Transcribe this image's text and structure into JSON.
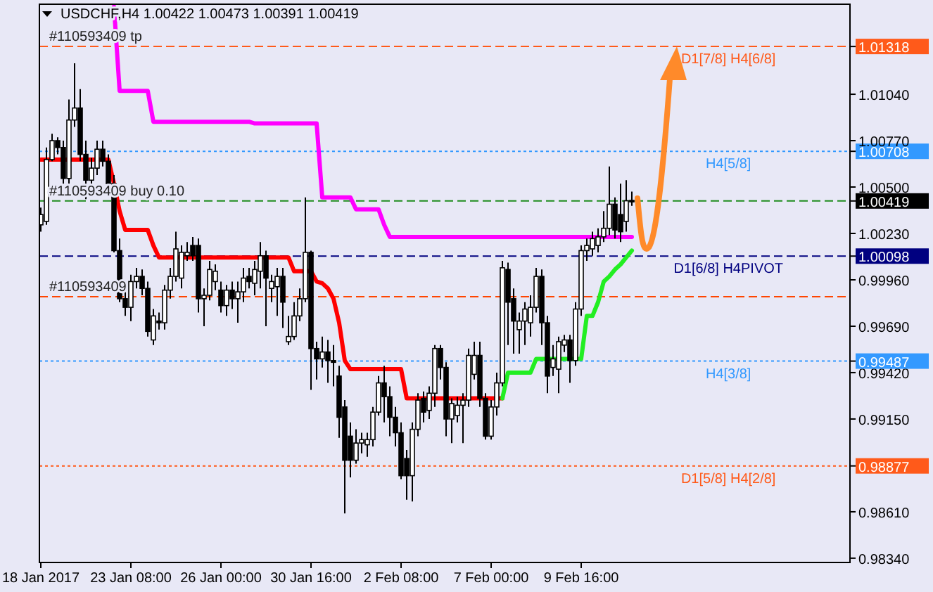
{
  "chart_data": {
    "type": "candlestick",
    "title": "USDCHF,H4  1.00422 1.00473 1.00391 1.00419",
    "categories": [
      "18 Jan 2017",
      null,
      null,
      null,
      null,
      null,
      null,
      null,
      null,
      null,
      null,
      null,
      null,
      null,
      null,
      null,
      "23 Jan 08:00",
      null,
      null,
      null,
      null,
      null,
      null,
      null,
      null,
      null,
      null,
      null,
      null,
      null,
      null,
      null,
      "26 Jan 00:00",
      null,
      null,
      null,
      null,
      null,
      null,
      null,
      null,
      null,
      null,
      null,
      null,
      null,
      null,
      null,
      "30 Jan 16:00",
      null,
      null,
      null,
      null,
      null,
      null,
      null,
      null,
      null,
      null,
      null,
      null,
      null,
      null,
      null,
      "2 Feb 08:00",
      null,
      null,
      null,
      null,
      null,
      null,
      null,
      null,
      null,
      null,
      null,
      null,
      null,
      null,
      null,
      "7 Feb 00:00",
      null,
      null,
      null,
      null,
      null,
      null,
      null,
      null,
      null,
      null,
      null,
      null,
      null,
      null,
      null,
      "9 Feb 16:00",
      null,
      null,
      null,
      null,
      null,
      null,
      null,
      null,
      null
    ],
    "ohlc": [
      [
        1.0028,
        1.0038,
        1.0024,
        1.0034
      ],
      [
        1.003,
        1.0073,
        1.0028,
        1.0066
      ],
      [
        1.0066,
        1.0081,
        1.0065,
        1.0077
      ],
      [
        1.0077,
        1.0079,
        1.0069,
        1.0073
      ],
      [
        1.0073,
        1.0077,
        1.0052,
        1.0055
      ],
      [
        1.0055,
        1.0101,
        1.0052,
        1.0089
      ],
      [
        1.0089,
        1.0122,
        1.0085,
        1.0096
      ],
      [
        1.0096,
        1.0107,
        1.0065,
        1.0069
      ],
      [
        1.0069,
        1.0077,
        1.0043,
        1.0054
      ],
      [
        1.0054,
        1.0067,
        1.0044,
        1.0061
      ],
      [
        1.0061,
        1.0077,
        1.0057,
        1.0072
      ],
      [
        1.0072,
        1.0077,
        1.0062,
        1.0065
      ],
      [
        1.0065,
        1.0069,
        1.0048,
        1.0052
      ],
      [
        1.0052,
        1.0057,
        1.0012,
        1.0013
      ],
      [
        1.0013,
        1.002,
        0.9983,
        0.9985
      ],
      [
        0.9985,
        0.9995,
        0.9975,
        0.998
      ],
      [
        0.998,
        0.9999,
        0.9972,
        0.9995
      ],
      [
        0.9995,
        1.0003,
        0.9991,
        0.9998
      ],
      [
        0.9998,
        1.0002,
        0.9987,
        0.9991
      ],
      [
        0.9991,
        0.9995,
        0.9963,
        0.9966
      ],
      [
        0.9961,
        0.9979,
        0.9958,
        0.9975
      ],
      [
        0.9972,
        0.9977,
        0.9967,
        0.9971
      ],
      [
        0.9971,
        0.9993,
        0.9967,
        0.999
      ],
      [
        0.999,
        1.0003,
        0.9985,
        0.9998
      ],
      [
        0.9998,
        1.0024,
        0.9995,
        1.0014
      ],
      [
        0.9997,
        1.0016,
        0.9991,
        1.0012
      ],
      [
        1.001,
        1.0018,
        1.0007,
        1.0012
      ],
      [
        1.0016,
        1.0021,
        1.0007,
        1.001
      ],
      [
        1.0016,
        1.002,
        0.9977,
        0.9985
      ],
      [
        0.9985,
        0.9991,
        0.9969,
        0.9987
      ],
      [
        0.9987,
        1.0007,
        0.9984,
        1.0002
      ],
      [
        0.9995,
        1.0005,
        0.999,
        1.0001
      ],
      [
        0.999,
        0.9995,
        0.9977,
        0.9981
      ],
      [
        0.9981,
        0.9993,
        0.9975,
        0.999
      ],
      [
        0.999,
        0.9995,
        0.9979,
        0.9985
      ],
      [
        0.9985,
        0.9995,
        0.9971,
        0.9989
      ],
      [
        0.9989,
        1.0003,
        0.9983,
        0.9997
      ],
      [
        0.9998,
        1.0003,
        0.9991,
        0.9995
      ],
      [
        0.9994,
        1.0007,
        0.9987,
        1.0002
      ],
      [
        1.0001,
        1.0018,
        0.9991,
        1.001
      ],
      [
        1.001,
        1.0013,
        0.9969,
        0.9997
      ],
      [
        0.9991,
        0.9999,
        0.9983,
        0.9995
      ],
      [
        0.9992,
        1.0003,
        0.9975,
        0.9998
      ],
      [
        0.9998,
        1.0003,
        0.9968,
        0.9983
      ],
      [
        0.996,
        0.9975,
        0.9958,
        0.9963
      ],
      [
        0.9963,
        0.9983,
        0.9961,
        0.9975
      ],
      [
        0.9975,
        0.9991,
        0.9972,
        0.9985
      ],
      [
        0.9985,
        1.0044,
        0.9983,
        1.0012
      ],
      [
        1.0012,
        1.0013,
        0.9932,
        0.9956
      ],
      [
        0.9956,
        0.996,
        0.9938,
        0.995
      ],
      [
        0.995,
        0.9963,
        0.9945,
        0.9954
      ],
      [
        0.9954,
        0.9961,
        0.9936,
        0.9949
      ],
      [
        0.9949,
        0.9958,
        0.9934,
        0.9948
      ],
      [
        0.994,
        0.9946,
        0.9904,
        0.9916
      ],
      [
        0.9922,
        0.9926,
        0.986,
        0.9891
      ],
      [
        0.9905,
        0.9913,
        0.9881,
        0.9891
      ],
      [
        0.9891,
        0.9909,
        0.9889,
        0.9901
      ],
      [
        0.9901,
        0.9907,
        0.9895,
        0.9903
      ],
      [
        0.99,
        0.9907,
        0.9893,
        0.9903
      ],
      [
        0.9903,
        0.9922,
        0.9899,
        0.9919
      ],
      [
        0.9919,
        0.994,
        0.9917,
        0.9936
      ],
      [
        0.9936,
        0.9946,
        0.9913,
        0.9928
      ],
      [
        0.9928,
        0.9934,
        0.9905,
        0.9916
      ],
      [
        0.9916,
        0.9922,
        0.9899,
        0.9907
      ],
      [
        0.9907,
        0.9913,
        0.988,
        0.9882
      ],
      [
        0.9892,
        0.9897,
        0.9868,
        0.9882
      ],
      [
        0.9882,
        0.9913,
        0.9867,
        0.9909
      ],
      [
        0.9909,
        0.993,
        0.9905,
        0.9926
      ],
      [
        0.9927,
        0.9931,
        0.9913,
        0.9919
      ],
      [
        0.992,
        0.9934,
        0.9915,
        0.993
      ],
      [
        0.993,
        0.9958,
        0.9922,
        0.9956
      ],
      [
        0.9956,
        0.9958,
        0.9938,
        0.9945
      ],
      [
        0.9945,
        0.9948,
        0.9905,
        0.9915
      ],
      [
        0.9915,
        0.9927,
        0.9901,
        0.9924
      ],
      [
        0.9917,
        0.9928,
        0.9913,
        0.9923
      ],
      [
        0.9923,
        0.993,
        0.9901,
        0.9926
      ],
      [
        0.9926,
        0.9956,
        0.9922,
        0.9952
      ],
      [
        0.9941,
        0.996,
        0.9938,
        0.9952
      ],
      [
        0.9952,
        0.996,
        0.9922,
        0.9927
      ],
      [
        0.9927,
        0.993,
        0.9903,
        0.9905
      ],
      [
        0.9905,
        0.9926,
        0.9903,
        0.9922
      ],
      [
        0.9922,
        0.9942,
        0.9917,
        0.9936
      ],
      [
        0.9936,
        1.0007,
        0.9934,
        1.0003
      ],
      [
        1.0002,
        1.0006,
        0.9958,
        0.9983
      ],
      [
        0.9985,
        0.9991,
        0.9953,
        0.9972
      ],
      [
        0.9967,
        0.9977,
        0.9953,
        0.9972
      ],
      [
        0.9972,
        0.9983,
        0.9958,
        0.9979
      ],
      [
        0.9971,
        0.9987,
        0.9963,
        0.998
      ],
      [
        0.998,
        1.0003,
        0.9977,
        0.9998
      ],
      [
        0.9998,
        1.0002,
        0.9958,
        0.9971
      ],
      [
        0.9971,
        0.9975,
        0.993,
        0.994
      ],
      [
        0.9945,
        0.9958,
        0.994,
        0.995
      ],
      [
        0.9944,
        0.9963,
        0.993,
        0.996
      ],
      [
        0.9958,
        0.9964,
        0.9954,
        0.9961
      ],
      [
        0.9961,
        0.9964,
        0.9936,
        0.9949
      ],
      [
        0.9949,
        0.9983,
        0.9946,
        0.9979
      ],
      [
        0.9979,
        1.0016,
        0.9975,
        1.0013
      ],
      [
        1.0013,
        1.002,
        1.0007,
        1.0016
      ],
      [
        1.0014,
        1.0024,
        1.001,
        1.002
      ],
      [
        1.0016,
        1.0026,
        1.0012,
        1.0021
      ],
      [
        1.0021,
        1.0036,
        1.0018,
        1.0026
      ],
      [
        1.0026,
        1.0062,
        1.0022,
        1.004
      ],
      [
        1.004,
        1.0044,
        1.002,
        1.0025
      ],
      [
        1.0034,
        1.0052,
        1.0018,
        1.0024
      ],
      [
        1.003,
        1.0054,
        1.0024,
        1.0042
      ],
      [
        1.00422,
        1.00473,
        1.00391,
        1.00419
      ]
    ],
    "series": [
      {
        "type": "line",
        "color": "#ff00ff",
        "values": [
          null,
          null,
          null,
          null,
          null,
          null,
          null,
          null,
          null,
          null,
          null,
          null,
          null,
          1.0155,
          1.0106,
          1.0106,
          1.0106,
          1.0106,
          1.0106,
          1.0106,
          1.0088,
          1.0088,
          1.0088,
          1.0088,
          1.0088,
          1.0088,
          1.0088,
          1.0088,
          1.0088,
          1.0088,
          1.0088,
          1.0088,
          1.0088,
          1.0088,
          1.0088,
          1.0088,
          1.0088,
          1.0088,
          1.0087,
          1.0087,
          1.0087,
          1.0087,
          1.0087,
          1.0087,
          1.0087,
          1.0087,
          1.0087,
          1.0087,
          1.0087,
          1.0087,
          1.0044,
          1.0044,
          1.0044,
          1.0044,
          1.0044,
          1.0044,
          1.0037,
          1.0037,
          1.0037,
          1.0037,
          1.0037,
          1.0028,
          1.0021,
          1.0021,
          1.0021,
          1.0021,
          1.0021,
          1.0021,
          1.0021,
          1.0021,
          1.0021,
          1.0021,
          1.0021,
          1.0021,
          1.0021,
          1.0021,
          1.0021,
          1.0021,
          1.0021,
          1.0021,
          1.0021,
          1.0021,
          1.0021,
          1.0021,
          1.0021,
          1.0021,
          1.0021,
          1.0021,
          1.0021,
          1.0021,
          1.0021,
          1.0021,
          1.0021,
          1.0021,
          1.0021,
          1.0021,
          1.0021,
          1.0021,
          1.0021,
          1.0021,
          1.0021,
          1.0021,
          1.0021,
          1.0021,
          1.0021,
          1.0021
        ]
      },
      {
        "type": "line",
        "color": "#ff0000",
        "values": [
          1.0066,
          1.0066,
          1.0066,
          1.0066,
          1.0066,
          1.0066,
          1.0066,
          1.0066,
          1.0066,
          1.0066,
          1.0066,
          1.0066,
          1.0066,
          1.0052,
          1.0036,
          1.0025,
          1.0025,
          1.0025,
          1.0025,
          1.0025,
          1.0016,
          1.0009,
          1.0009,
          1.0009,
          1.0009,
          1.0009,
          1.0009,
          1.0009,
          1.0009,
          1.0009,
          1.0009,
          1.0009,
          1.0009,
          1.0009,
          1.0009,
          1.0009,
          1.0009,
          1.0009,
          1.0009,
          1.0009,
          1.0009,
          1.0009,
          1.0009,
          1.0009,
          1.0009,
          1.0001,
          1.0001,
          1.0001,
          1.0001,
          0.9995,
          0.9994,
          0.9991,
          0.9985,
          0.9971,
          0.9949,
          0.9944,
          0.9944,
          0.9944,
          0.9944,
          0.9944,
          0.9944,
          0.9944,
          0.9944,
          0.9944,
          0.9944,
          0.9927,
          0.9927,
          0.9927,
          0.9927,
          0.9927,
          0.9927,
          0.9927,
          0.9927,
          0.9927,
          0.9927,
          0.9927,
          0.9927,
          0.9927,
          0.9927,
          0.9927,
          0.9927,
          0.9927,
          0.9927,
          null,
          null,
          null,
          null,
          null,
          null,
          null,
          null,
          null,
          null,
          null,
          null,
          null,
          null,
          null,
          null,
          null,
          null,
          null,
          null,
          null,
          null,
          null
        ]
      },
      {
        "type": "line",
        "color": "#22ee22",
        "values": [
          null,
          null,
          null,
          null,
          null,
          null,
          null,
          null,
          null,
          null,
          null,
          null,
          null,
          null,
          null,
          null,
          null,
          null,
          null,
          null,
          null,
          null,
          null,
          null,
          null,
          null,
          null,
          null,
          null,
          null,
          null,
          null,
          null,
          null,
          null,
          null,
          null,
          null,
          null,
          null,
          null,
          null,
          null,
          null,
          null,
          null,
          null,
          null,
          null,
          null,
          null,
          null,
          null,
          null,
          null,
          null,
          null,
          null,
          null,
          null,
          null,
          null,
          null,
          null,
          null,
          null,
          null,
          null,
          null,
          null,
          null,
          null,
          null,
          null,
          null,
          null,
          null,
          null,
          null,
          null,
          null,
          null,
          0.9927,
          0.9942,
          0.9942,
          0.9942,
          0.9942,
          0.9942,
          0.995,
          0.995,
          0.995,
          0.995,
          0.995,
          0.995,
          0.995,
          0.995,
          0.995,
          0.9975,
          0.9975,
          0.9983,
          0.9995,
          0.9998,
          1.0002,
          1.0005,
          1.0009,
          1.0013
        ]
      }
    ],
    "ylim": [
      0.98315,
      1.01564
    ],
    "yticks": [
      {
        "value": 0.9834,
        "label": "0.98340"
      },
      {
        "value": 0.9861,
        "label": "0.98610"
      },
      {
        "value": 0.98877,
        "label": "0.98877"
      },
      {
        "value": 0.9915,
        "label": "0.99150"
      },
      {
        "value": 0.9942,
        "label": "0.99420"
      },
      {
        "value": 0.99487,
        "label": "0.99487"
      },
      {
        "value": 0.9969,
        "label": "0.99690"
      },
      {
        "value": 0.9996,
        "label": "0.99960"
      },
      {
        "value": 1.00098,
        "label": "1.00098"
      },
      {
        "value": 1.0023,
        "label": "1.00230"
      },
      {
        "value": 1.00419,
        "label": "1.00419"
      },
      {
        "value": 1.005,
        "label": "1.00500"
      },
      {
        "value": 1.00708,
        "label": "1.00708"
      },
      {
        "value": 1.0077,
        "label": "1.00770"
      },
      {
        "value": 1.0104,
        "label": "1.01040"
      },
      {
        "value": 1.01318,
        "label": "1.01318"
      }
    ],
    "ref_lines": [
      {
        "axis": "y",
        "value": 1.01318,
        "label": "D1[7/8] H4[6/8]",
        "color": "#ff5a1a",
        "line_style": "dashed"
      },
      {
        "axis": "y",
        "value": 1.00708,
        "label": "H4[5/8]",
        "color": "#3399ff",
        "line_style": "dotted"
      },
      {
        "axis": "y",
        "value": 1.00419,
        "label": null,
        "color": "#1e8c1e",
        "line_style": "dashed"
      },
      {
        "axis": "y",
        "value": 1.00098,
        "label": "D1[6/8] H4PIVOT",
        "color": "#000080",
        "line_style": "dashed"
      },
      {
        "axis": "y",
        "value": 0.99862,
        "label": null,
        "color": "#ff4500",
        "line_style": "dashed"
      },
      {
        "axis": "y",
        "value": 0.99487,
        "label": "H4[3/8]",
        "color": "#3399ff",
        "line_style": "dotted"
      },
      {
        "axis": "y",
        "value": 0.98877,
        "label": "D1[5/8] H4[2/8]",
        "color": "#ff5a1a",
        "line_style": "dotted"
      }
    ],
    "annotations": [
      {
        "text": "#110593409 tp",
        "x": "18 Jan 2017",
        "y": 1.01318
      },
      {
        "text": "#110593409 buy 0.10",
        "x": "18 Jan 2017",
        "y": 1.00419
      },
      {
        "text": "#110593409",
        "x": "18 Jan 2017",
        "y": 0.99862
      }
    ]
  }
}
